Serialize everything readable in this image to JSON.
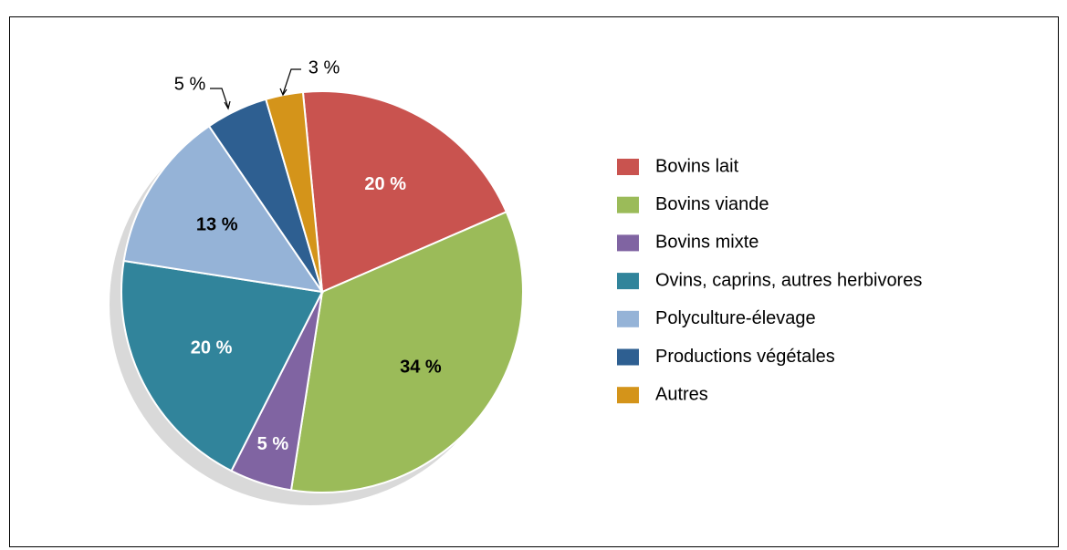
{
  "chart_data": {
    "type": "pie",
    "categories": [
      "Bovins lait",
      "Bovins viande",
      "Bovins mixte",
      "Ovins, caprins, autres herbivores",
      "Polyculture-élevage",
      "Productions végétales",
      "Autres"
    ],
    "values": [
      20,
      34,
      5,
      20,
      13,
      5,
      3
    ],
    "value_labels": [
      "20 %",
      "34 %",
      "5 %",
      "20 %",
      "13 %",
      "5 %",
      "3 %"
    ],
    "colors": [
      "#c9534f",
      "#9bbb59",
      "#8064a2",
      "#31849b",
      "#95b3d7",
      "#2e5f91",
      "#d4941a"
    ],
    "legend": "right"
  }
}
